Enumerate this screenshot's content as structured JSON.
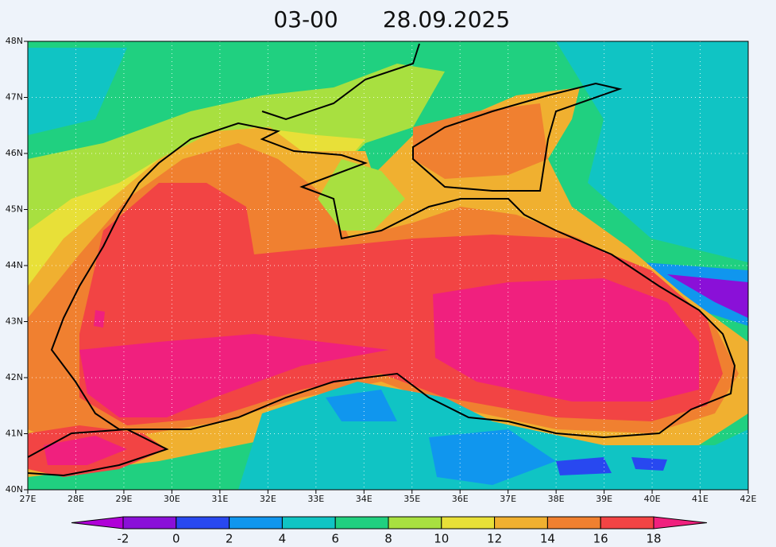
{
  "header": {
    "time": "03-00",
    "date": "28.09.2025"
  },
  "map": {
    "xlim": [
      27,
      42
    ],
    "ylim": [
      40,
      48
    ],
    "grid": true,
    "xticks": [
      {
        "value": 27,
        "label": "27E"
      },
      {
        "value": 28,
        "label": "28E"
      },
      {
        "value": 29,
        "label": "29E"
      },
      {
        "value": 30,
        "label": "30E"
      },
      {
        "value": 31,
        "label": "31E"
      },
      {
        "value": 32,
        "label": "32E"
      },
      {
        "value": 33,
        "label": "33E"
      },
      {
        "value": 34,
        "label": "34E"
      },
      {
        "value": 35,
        "label": "35E"
      },
      {
        "value": 36,
        "label": "36E"
      },
      {
        "value": 37,
        "label": "37E"
      },
      {
        "value": 38,
        "label": "38E"
      },
      {
        "value": 39,
        "label": "39E"
      },
      {
        "value": 40,
        "label": "40E"
      },
      {
        "value": 41,
        "label": "41E"
      },
      {
        "value": 42,
        "label": "42E"
      }
    ],
    "yticks": [
      {
        "value": 40,
        "label": "40N"
      },
      {
        "value": 41,
        "label": "41N"
      },
      {
        "value": 42,
        "label": "42N"
      },
      {
        "value": 43,
        "label": "43N"
      },
      {
        "value": 44,
        "label": "44N"
      },
      {
        "value": 45,
        "label": "45N"
      },
      {
        "value": 46,
        "label": "46N"
      },
      {
        "value": 47,
        "label": "47N"
      },
      {
        "value": 48,
        "label": "48N"
      }
    ]
  },
  "colorbar": {
    "levels": [
      -2,
      0,
      2,
      4,
      6,
      8,
      10,
      12,
      14,
      16,
      18
    ],
    "colors": [
      "#b000d8",
      "#8a10d8",
      "#2848f0",
      "#1096ee",
      "#10c4c4",
      "#20d080",
      "#a8e040",
      "#e8e038",
      "#f0b030",
      "#f08030",
      "#f24444",
      "#f0207e"
    ]
  }
}
